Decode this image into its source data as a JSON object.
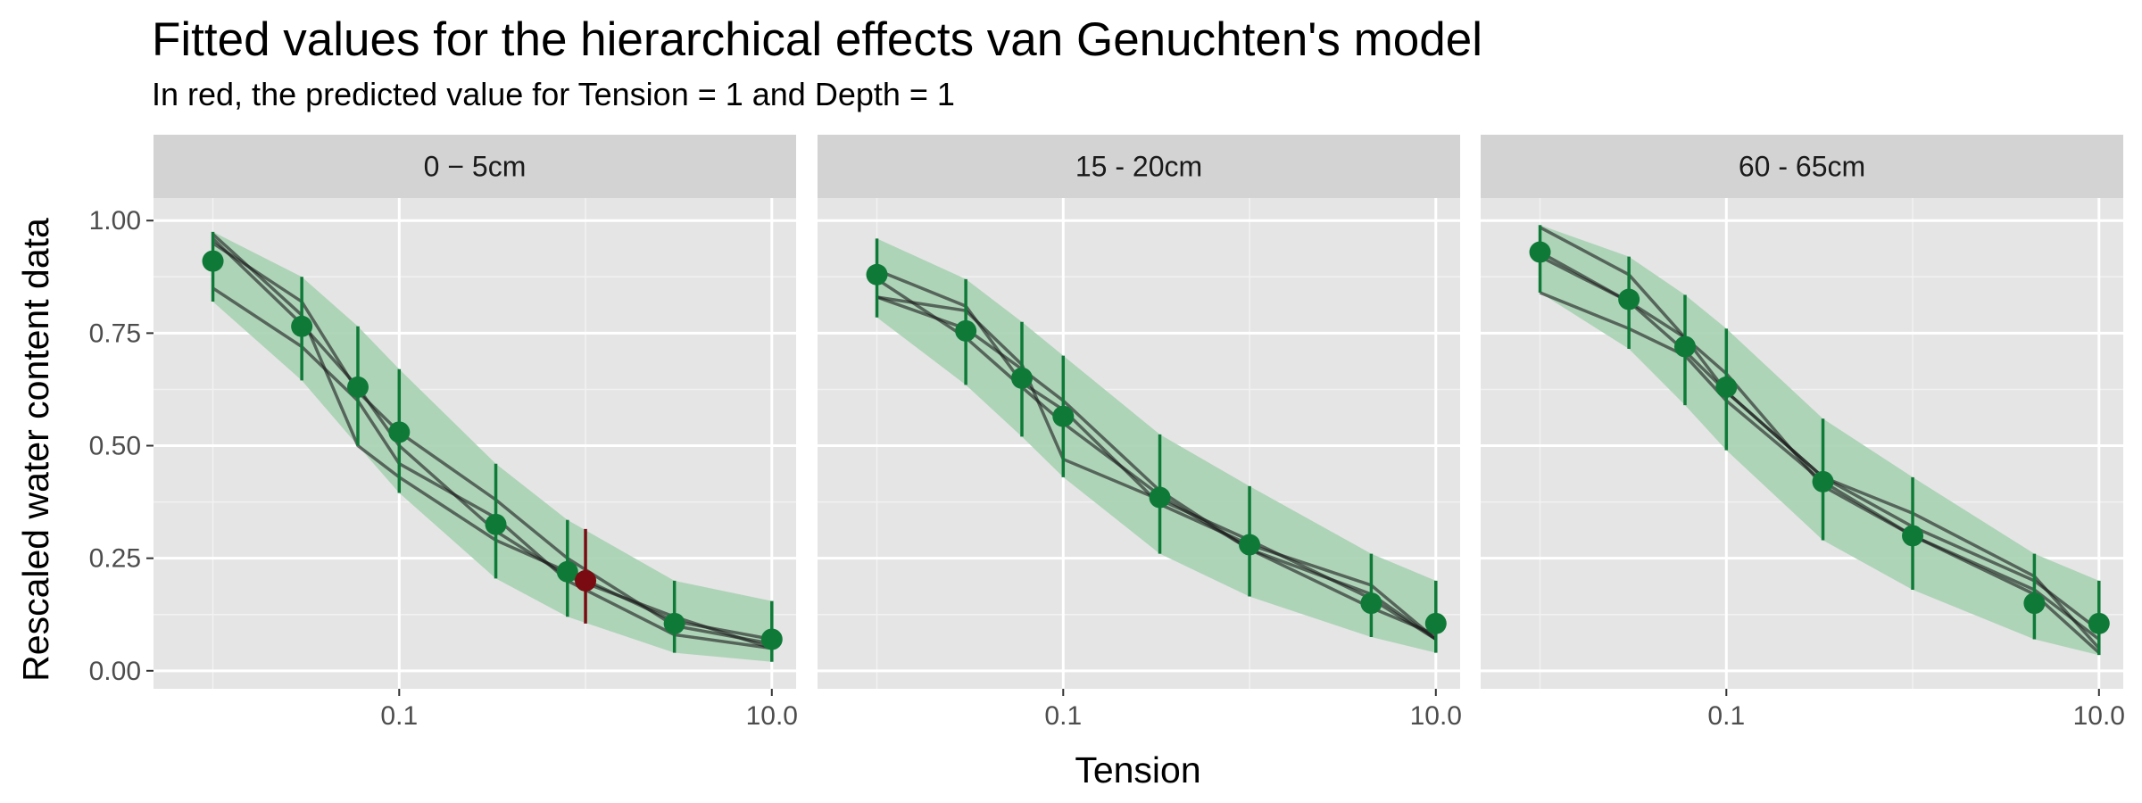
{
  "chart_data": {
    "type": "line",
    "title": "Fitted values for the hierarchical effects van Genuchten's model",
    "subtitle": "In red, the predicted value for Tension = 1 and Depth = 1",
    "xlabel": "Tension",
    "ylabel": "Rescaled water content data",
    "x_scale": "log10",
    "xlim": [
      0.0048,
      13.5
    ],
    "ylim": [
      -0.04,
      1.05
    ],
    "x_ticks": [
      0.1,
      10
    ],
    "x_tick_labels": [
      "0.1",
      "10.0"
    ],
    "y_ticks": [
      0,
      0.25,
      0.5,
      0.75,
      1
    ],
    "y_tick_labels": [
      "0.00",
      "0.25",
      "0.50",
      "0.75",
      "1.00"
    ],
    "grid": true,
    "legend": "none",
    "colors": {
      "ribbon": "#a7d2b3",
      "point": "#0f7a38",
      "highlight": "#7a0b12",
      "line": "#1a1a1a",
      "panel": "#e5e5e5",
      "strip": "#d3d3d3"
    },
    "panels": [
      {
        "label": "0 − 5cm",
        "x": [
          0.01,
          0.03,
          0.06,
          0.1,
          0.33,
          0.8,
          3,
          10
        ],
        "mean": [
          0.91,
          0.765,
          0.63,
          0.53,
          0.325,
          0.22,
          0.105,
          0.07
        ],
        "lower": [
          0.82,
          0.645,
          0.5,
          0.395,
          0.205,
          0.12,
          0.04,
          0.02
        ],
        "upper": [
          0.975,
          0.875,
          0.765,
          0.67,
          0.46,
          0.335,
          0.2,
          0.155
        ],
        "highlight": {
          "x": 1.0,
          "y": 0.2,
          "lower": 0.105,
          "upper": 0.315
        },
        "draw_lines": [
          [
            0.97,
            0.79,
            0.5,
            0.43,
            0.29,
            0.22,
            0.11,
            0.07
          ],
          [
            0.85,
            0.72,
            0.6,
            0.46,
            0.34,
            0.2,
            0.08,
            0.05
          ],
          [
            0.95,
            0.82,
            0.62,
            0.53,
            0.38,
            0.25,
            0.1,
            0.06
          ],
          [
            0.96,
            0.77,
            0.63,
            0.5,
            0.31,
            0.21,
            0.12,
            0.05
          ]
        ]
      },
      {
        "label": "15 - 20cm",
        "x": [
          0.01,
          0.03,
          0.06,
          0.1,
          0.33,
          1.0,
          4.5,
          10
        ],
        "mean": [
          0.88,
          0.755,
          0.65,
          0.565,
          0.385,
          0.28,
          0.15,
          0.105
        ],
        "lower": [
          0.785,
          0.635,
          0.52,
          0.43,
          0.26,
          0.165,
          0.075,
          0.04
        ],
        "upper": [
          0.96,
          0.87,
          0.775,
          0.7,
          0.525,
          0.41,
          0.26,
          0.2
        ],
        "draw_lines": [
          [
            0.83,
            0.8,
            0.68,
            0.47,
            0.38,
            0.29,
            0.16,
            0.07
          ],
          [
            0.83,
            0.76,
            0.67,
            0.6,
            0.4,
            0.27,
            0.14,
            0.08
          ],
          [
            0.89,
            0.81,
            0.64,
            0.58,
            0.37,
            0.28,
            0.19,
            0.07
          ],
          [
            0.87,
            0.74,
            0.63,
            0.55,
            0.39,
            0.27,
            0.17,
            0.07
          ]
        ]
      },
      {
        "label": "60 - 65cm",
        "x": [
          0.01,
          0.03,
          0.06,
          0.1,
          0.33,
          1.0,
          4.5,
          10
        ],
        "mean": [
          0.93,
          0.825,
          0.72,
          0.63,
          0.42,
          0.3,
          0.15,
          0.105
        ],
        "lower": [
          0.84,
          0.715,
          0.59,
          0.49,
          0.29,
          0.18,
          0.07,
          0.035
        ],
        "upper": [
          0.99,
          0.92,
          0.835,
          0.76,
          0.56,
          0.43,
          0.26,
          0.2
        ],
        "draw_lines": [
          [
            0.985,
            0.88,
            0.74,
            0.62,
            0.43,
            0.35,
            0.21,
            0.05
          ],
          [
            0.93,
            0.82,
            0.71,
            0.62,
            0.43,
            0.32,
            0.2,
            0.09
          ],
          [
            0.84,
            0.76,
            0.7,
            0.6,
            0.42,
            0.3,
            0.18,
            0.07
          ],
          [
            0.92,
            0.82,
            0.74,
            0.66,
            0.41,
            0.3,
            0.17,
            0.04
          ]
        ]
      }
    ]
  }
}
